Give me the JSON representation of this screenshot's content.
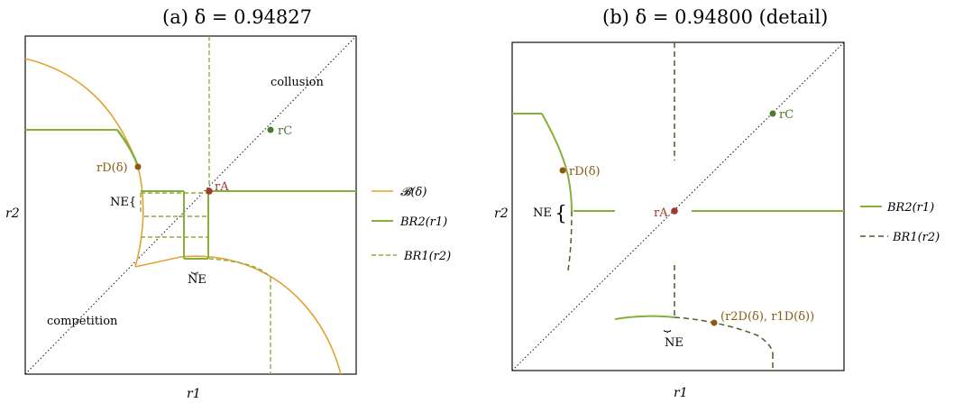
{
  "panel_a": {
    "title": "(a) δ = 0.94827",
    "xlabel": "r1",
    "ylabel": "r2",
    "labels": {
      "collusion": "collusion",
      "competition": "competition",
      "rC": "rC",
      "rD": "rD(δ)",
      "rA": "rA",
      "ne_left": "NE{",
      "ne_bottom": "NE"
    },
    "legend": [
      {
        "text": "𝓑(δ)",
        "style": "solid",
        "color": "#e3a233"
      },
      {
        "text": "BR2(r1)",
        "style": "solid",
        "color": "#84b03b"
      },
      {
        "text": "BR1(r2)",
        "style": "dashed",
        "color": "#84b03b"
      }
    ]
  },
  "panel_b": {
    "title": "(b) δ = 0.94800 (detail)",
    "xlabel": "r1",
    "ylabel": "r2",
    "labels": {
      "rC": "rC",
      "rD": "rD(δ)",
      "rA": "rA",
      "ne_left": "NE",
      "ne_bottom": "NE",
      "rD_pair": "(r2D(δ), r1D(δ))"
    },
    "legend": [
      {
        "text": "BR2(r1)",
        "style": "solid",
        "color": "#84b03b"
      },
      {
        "text": "BR1(r2)",
        "style": "dashed",
        "color": "#4f5e24"
      }
    ]
  },
  "colors": {
    "orange": "#e3a233",
    "green": "#84b03b",
    "darkgreen": "#4f5e24",
    "red": "#a0392b",
    "brown": "#8a5a12"
  }
}
